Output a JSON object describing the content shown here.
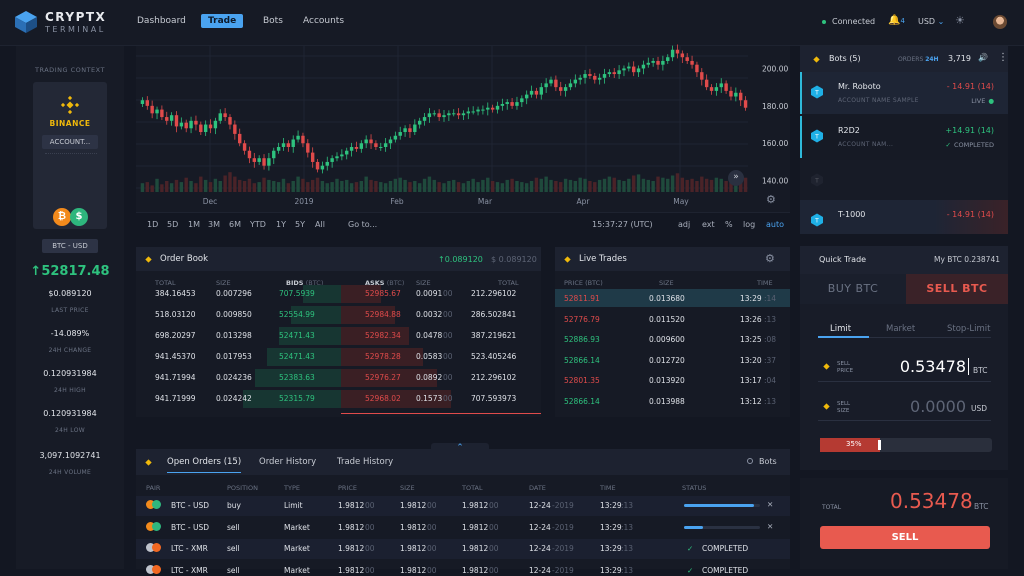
{
  "app": {
    "brand": "CRYPTX",
    "brand_sub": "TERMINAL"
  },
  "nav": [
    {
      "label": "Dashboard"
    },
    {
      "label": "Trade"
    },
    {
      "label": "Bots"
    },
    {
      "label": "Accounts"
    }
  ],
  "header": {
    "status": "Connected",
    "notif_count": "4",
    "currency": "USD"
  },
  "context": {
    "title": "TRADING CONTEXT",
    "exchange": "BINANCE",
    "account": "ACCOUNT...",
    "pair": "BTC - USD",
    "last_price_big": "52817.48",
    "last_price": "$0.089120",
    "last_price_label": "LAST PRICE",
    "change": "-14.089%",
    "change_label": "24H CHANGE",
    "high": "0.120931984",
    "high_label": "24H HIGH",
    "low": "0.120931984",
    "low_label": "24H LOW",
    "volume": "3,097.1092741",
    "volume_label": "24H VOLUME"
  },
  "chart_data": {
    "type": "candlestick",
    "x_labels": [
      "Dec",
      "2019",
      "Feb",
      "Mar",
      "Apr",
      "May"
    ],
    "y_ticks": [
      "200.00",
      "180.00",
      "160.00",
      "140.00"
    ],
    "ylim": [
      135,
      212
    ],
    "series_close": [
      183,
      180,
      176,
      178,
      174,
      172,
      175,
      169,
      171,
      168,
      172,
      170,
      166,
      170,
      168,
      172,
      176,
      174,
      170,
      165,
      160,
      156,
      152,
      150,
      152,
      148,
      152,
      156,
      158,
      160,
      158,
      162,
      164,
      160,
      155,
      150,
      146,
      148,
      150,
      152,
      153,
      154,
      156,
      158,
      157,
      160,
      162,
      160,
      158,
      158,
      160,
      162,
      164,
      166,
      168,
      166,
      170,
      172,
      174,
      176,
      176,
      174,
      175,
      176,
      176,
      175,
      176,
      177,
      177,
      178,
      178,
      179,
      178,
      180,
      181,
      182,
      180,
      182,
      184,
      186,
      188,
      186,
      190,
      192,
      194,
      190,
      188,
      190,
      192,
      194,
      195,
      197,
      196,
      194,
      195,
      197,
      198,
      197,
      199,
      200,
      201,
      198,
      200,
      202,
      203,
      204,
      202,
      204,
      206,
      210,
      208,
      206,
      204,
      202,
      198,
      194,
      190,
      188,
      190,
      192,
      188,
      185,
      187,
      183,
      179
    ],
    "volume": [
      8,
      9,
      6,
      12,
      7,
      10,
      8,
      11,
      9,
      13,
      10,
      8,
      14,
      11,
      9,
      12,
      10,
      15,
      18,
      14,
      11,
      10,
      12,
      8,
      9,
      13,
      11,
      10,
      9,
      12,
      8,
      10,
      14,
      12,
      9,
      11,
      13,
      10,
      8,
      9,
      12,
      10,
      11,
      8,
      9,
      10,
      14,
      11,
      10,
      9,
      8,
      10,
      12,
      13,
      11,
      9,
      10,
      8,
      12,
      14,
      11,
      9,
      8,
      10,
      11,
      9,
      8,
      10,
      12,
      9,
      11,
      13,
      10,
      9,
      8,
      11,
      12,
      10,
      9,
      8,
      10,
      13,
      12,
      14,
      11,
      10,
      9,
      12,
      11,
      10,
      13,
      12,
      10,
      9,
      11,
      12,
      14,
      13,
      11,
      10,
      12,
      15,
      16,
      12,
      11,
      10,
      14,
      13,
      12,
      15,
      17,
      13,
      11,
      12,
      10,
      14,
      12,
      11,
      13,
      12,
      10,
      11,
      12,
      10,
      13
    ],
    "xlabel": "",
    "ylabel": ""
  },
  "chart_tools": {
    "ranges": [
      "1D",
      "5D",
      "1M",
      "3M",
      "6M",
      "YTD",
      "1Y",
      "5Y",
      "All"
    ],
    "goto": "Go to...",
    "time": "15:37:27 (UTC)",
    "opts": [
      "adj",
      "ext",
      "%",
      "log",
      "auto"
    ]
  },
  "orderbook": {
    "title": "Order Book",
    "spread_price": "↑0.089120",
    "spread_usd": "$ 0.089120",
    "cols": [
      "TOTAL",
      "SIZE",
      "BIDS",
      "(BTC)",
      "ASKS",
      "(BTC)",
      "SIZE",
      "TOTAL"
    ],
    "rows": [
      {
        "total": "384.16453",
        "size": "0.007296",
        "bid": "707.5939",
        "ask": "52985.67",
        "asize": "0.0091",
        "asize_dim": "00",
        "atotal": "212.296102"
      },
      {
        "total": "518.03120",
        "size": "0.009850",
        "bid": "52554.99",
        "ask": "52984.88",
        "asize": "0.0032",
        "asize_dim": "00",
        "atotal": "286.502841"
      },
      {
        "total": "698.20297",
        "size": "0.013298",
        "bid": "52471.43",
        "ask": "52982.34",
        "asize": "0.0478",
        "asize_dim": "00",
        "atotal": "387.219621"
      },
      {
        "total": "941.45370",
        "size": "0.017953",
        "bid": "52471.43",
        "ask": "52978.28",
        "asize": "0.0583",
        "asize_dim": "00",
        "atotal": "523.405246"
      },
      {
        "total": "941.71994",
        "size": "0.024236",
        "bid": "52383.63",
        "ask": "52976.27",
        "asize": "0.0892",
        "asize_dim": "00",
        "atotal": "212.296102"
      },
      {
        "total": "941.71999",
        "size": "0.024242",
        "bid": "52315.79",
        "ask": "52968.02",
        "asize": "0.1573",
        "asize_dim": "00",
        "atotal": "707.593973"
      }
    ]
  },
  "trades": {
    "title": "Live Trades",
    "cols": [
      "PRICE (BTC)",
      "SIZE",
      "TIME"
    ],
    "rows": [
      {
        "price": "52811.91",
        "side": "red",
        "size": "0.013680",
        "time": "13:29",
        "sec": ":14"
      },
      {
        "price": "52776.79",
        "side": "red",
        "size": "0.011520",
        "time": "13:26",
        "sec": ":13"
      },
      {
        "price": "52886.93",
        "side": "green",
        "size": "0.009600",
        "time": "13:25",
        "sec": ":08"
      },
      {
        "price": "52866.14",
        "side": "green",
        "size": "0.012720",
        "time": "13:20",
        "sec": ":37"
      },
      {
        "price": "52801.35",
        "side": "red",
        "size": "0.013920",
        "time": "13:17",
        "sec": ":04"
      },
      {
        "price": "52866.14",
        "side": "green",
        "size": "0.013988",
        "time": "13:12",
        "sec": ":13"
      }
    ]
  },
  "orders": {
    "tabs": [
      "Open Orders (15)",
      "Order History",
      "Trade History"
    ],
    "bots_toggle": "Bots",
    "cols": [
      "PAIR",
      "POSITION",
      "TYPE",
      "PRICE",
      "SIZE",
      "TOTAL",
      "DATE",
      "TIME",
      "STATUS"
    ],
    "rows": [
      {
        "pair": "BTC - USD",
        "coin": "btc",
        "pos": "buy",
        "type": "Limit",
        "price": "1.9812",
        "size": "1.9812",
        "total": "1.9812",
        "dim": "00",
        "date": "12-24",
        "year": "-2019",
        "time": "13:29",
        "sec": ":13",
        "status": "",
        "progress": 0.92
      },
      {
        "pair": "BTC - USD",
        "coin": "btc",
        "pos": "sell",
        "type": "Market",
        "price": "1.9812",
        "size": "1.9812",
        "total": "1.9812",
        "dim": "00",
        "date": "12-24",
        "year": "-2019",
        "time": "13:29",
        "sec": ":13",
        "status": "",
        "progress": 0.25
      },
      {
        "pair": "LTC - XMR",
        "coin": "ltc",
        "pos": "sell",
        "type": "Market",
        "price": "1.9812",
        "size": "1.9812",
        "total": "1.9812",
        "dim": "00",
        "date": "12-24",
        "year": "-2019",
        "time": "13:29",
        "sec": ":13",
        "status": "COMPLETED"
      },
      {
        "pair": "LTC - XMR",
        "coin": "ltc",
        "pos": "sell",
        "type": "Market",
        "price": "1.9812",
        "size": "1.9812",
        "total": "1.9812",
        "dim": "00",
        "date": "12-24",
        "year": "-2019",
        "time": "13:29",
        "sec": ":13",
        "status": "COMPLETED"
      }
    ]
  },
  "bots": {
    "title": "Bots (5)",
    "orders_label": "ORDERS",
    "orders_period": "24H",
    "orders_count": "3,719",
    "items": [
      {
        "name": "Mr. Roboto",
        "sub": "ACCOUNT NAME SAMPLE",
        "pnl": "- 14.91 (14)",
        "pnl_color": "red",
        "status": "LIVE"
      },
      {
        "name": "R2D2",
        "sub": "ACCOUNT NAM...",
        "pnl": "+14.91 (14)",
        "pnl_color": "green",
        "status": "COMPLETED"
      },
      {
        "name": "",
        "sub": "",
        "pnl": "",
        "pnl_color": "",
        "status": ""
      },
      {
        "name": "T-1000",
        "sub": "",
        "pnl": "- 14.91 (14)",
        "pnl_color": "red",
        "status": ""
      }
    ]
  },
  "quick_trade": {
    "title": "Quick Trade",
    "balance": "My BTC 0.238741",
    "buy": "BUY BTC",
    "sell": "SELL BTC",
    "types": [
      "Limit",
      "Market",
      "Stop-Limit"
    ],
    "price_lbl1": "SELL",
    "price_lbl2": "PRICE",
    "price_val": "0.53478",
    "price_unit": "BTC",
    "size_lbl1": "SELL",
    "size_lbl2": "SIZE",
    "size_val": "0.0000",
    "size_unit": "USD",
    "slider_pct": "35%",
    "slider_value": 0.35,
    "total_label": "TOTAL",
    "total_val": "0.53478",
    "total_unit": "BTC",
    "sell_btn": "SELL"
  }
}
